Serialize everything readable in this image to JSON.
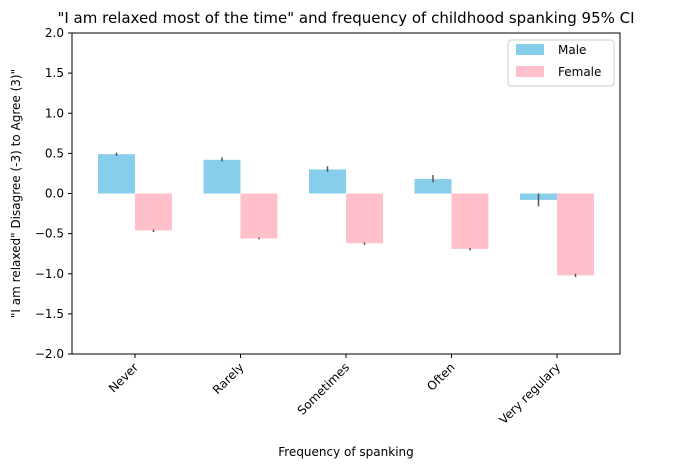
{
  "chart_data": {
    "type": "bar",
    "title": "\"I am relaxed most of the time\" and frequency of childhood spanking 95% CI",
    "xlabel": "Frequency of spanking",
    "ylabel": "\"I am relaxed\" Disagree (-3) to Agree (3)\"",
    "categories": [
      "Never",
      "Rarely",
      "Sometimes",
      "Often",
      "Very regulary"
    ],
    "ylim": [
      -2.0,
      2.0
    ],
    "yticks": [
      -2.0,
      -1.5,
      -1.0,
      -0.5,
      0.0,
      0.5,
      1.0,
      1.5,
      2.0
    ],
    "ytick_labels": [
      "−2.0",
      "−1.5",
      "−1.0",
      "−0.5",
      "0.0",
      "0.5",
      "1.0",
      "1.5",
      "2.0"
    ],
    "legend_placement": "top-right",
    "grid": false,
    "series": [
      {
        "name": "Male",
        "color": "#87ceeb",
        "values": [
          0.49,
          0.42,
          0.3,
          0.18,
          -0.08
        ],
        "ci": [
          [
            0.47,
            0.51
          ],
          [
            0.4,
            0.45
          ],
          [
            0.27,
            0.34
          ],
          [
            0.14,
            0.23
          ],
          [
            -0.16,
            0.0
          ]
        ]
      },
      {
        "name": "Female",
        "color": "#ffc0cb",
        "values": [
          -0.46,
          -0.56,
          -0.62,
          -0.69,
          -1.02
        ],
        "ci": [
          [
            -0.48,
            -0.45
          ],
          [
            -0.57,
            -0.55
          ],
          [
            -0.64,
            -0.61
          ],
          [
            -0.71,
            -0.68
          ],
          [
            -1.04,
            -1.0
          ]
        ]
      }
    ],
    "errorbar_color": "#555555"
  }
}
